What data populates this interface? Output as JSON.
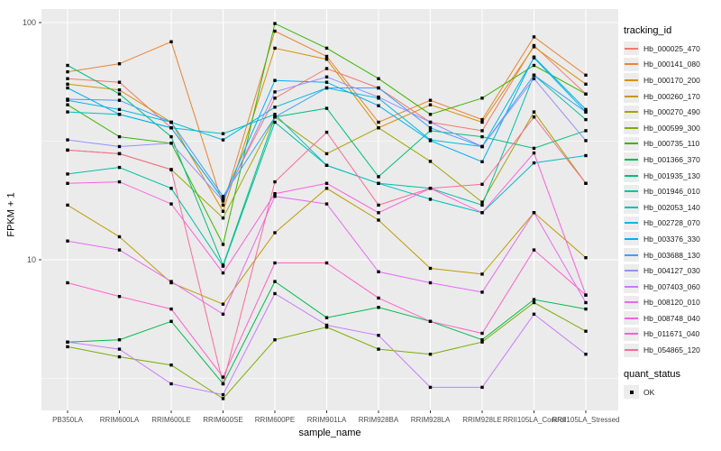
{
  "chart_data": {
    "type": "line",
    "title": "",
    "xlabel": "sample_name",
    "ylabel": "FPKM + 1",
    "y_scale": "log10",
    "y_tick_labels": [
      "100",
      "10"
    ],
    "y_tick_values": [
      100,
      10
    ],
    "y_minor_values": [
      31.62,
      3.162
    ],
    "ylim": [
      2.3,
      114
    ],
    "grid": true,
    "panel_bg": "#EBEBEB",
    "grid_color": "#FFFFFF",
    "tick_color": "#333333",
    "tick_label_color": "#4D4D4D",
    "point_shape": "square",
    "point_color": "#000000",
    "categories": [
      "PB350LA",
      "RRIM600LA",
      "RRIM600LE",
      "RRIM600SE",
      "RRIM600PE",
      "RRIM901LA",
      "RRIM928BA",
      "RRIM928LA",
      "RRIM928LE",
      "RRII105LA_Control",
      "RRII105LA_Stressed"
    ],
    "legend": {
      "title": "tracking_id",
      "position": "right"
    },
    "legend2": {
      "title": "quant_status",
      "items": [
        {
          "label": "OK",
          "shape": "square"
        }
      ]
    },
    "series": [
      {
        "name": "Hb_000025_470",
        "color": "#F8766D",
        "values": [
          58,
          56,
          36,
          18,
          48,
          64,
          53,
          38,
          35,
          80,
          50
        ]
      },
      {
        "name": "Hb_000141_080",
        "color": "#EA8331",
        "values": [
          62,
          67,
          83,
          17,
          92,
          72,
          38,
          47,
          39,
          87,
          60
        ]
      },
      {
        "name": "Hb_000170_200",
        "color": "#D89000",
        "values": [
          55,
          52,
          38,
          16,
          78,
          70,
          36,
          45,
          38,
          79,
          55
        ]
      },
      {
        "name": "Hb_000260_170",
        "color": "#C09B00",
        "values": [
          17,
          12.5,
          8,
          6.5,
          13,
          20,
          14.7,
          9.2,
          8.7,
          15.8,
          10.2
        ]
      },
      {
        "name": "Hb_000270_490",
        "color": "#A3A500",
        "values": [
          29,
          28,
          24,
          15,
          40,
          28,
          36,
          26,
          17.5,
          42,
          21
        ]
      },
      {
        "name": "Hb_000599_300",
        "color": "#7CAE00",
        "values": [
          4.3,
          3.9,
          3.6,
          2.6,
          4.6,
          5.2,
          4.2,
          4,
          4.5,
          6.6,
          5
        ]
      },
      {
        "name": "Hb_000735_110",
        "color": "#39B600",
        "values": [
          45,
          33,
          31,
          11.6,
          99,
          78,
          58,
          41,
          48,
          66,
          50
        ]
      },
      {
        "name": "Hb_001366_370",
        "color": "#00BB4E",
        "values": [
          4.5,
          4.6,
          5.5,
          3,
          8.1,
          5.7,
          6.3,
          5.5,
          4.6,
          6.8,
          6.2
        ]
      },
      {
        "name": "Hb_001935_130",
        "color": "#00BF7D",
        "values": [
          66,
          50,
          33,
          9.5,
          40,
          43.5,
          22.4,
          35,
          33,
          29.5,
          35
        ]
      },
      {
        "name": "Hb_001946_010",
        "color": "#00C1A3",
        "values": [
          23,
          24.5,
          20,
          9.4,
          38,
          25,
          21,
          20,
          17,
          60,
          39
        ]
      },
      {
        "name": "Hb_002053_140",
        "color": "#00BFC4",
        "values": [
          42,
          41,
          36,
          34,
          41,
          25,
          21,
          18,
          15.8,
          25.6,
          27.5
        ]
      },
      {
        "name": "Hb_002728_070",
        "color": "#00BAE0",
        "values": [
          47,
          43,
          38,
          32,
          44,
          53,
          48,
          32,
          30,
          71,
          42
        ]
      },
      {
        "name": "Hb_003376_330",
        "color": "#00B0F6",
        "values": [
          53,
          41,
          36,
          18,
          57,
          56,
          44.6,
          31.8,
          25.9,
          71.6,
          43
        ]
      },
      {
        "name": "Hb_003688_130",
        "color": "#35A2FF",
        "values": [
          47.5,
          47,
          38,
          18.5,
          40,
          53,
          53,
          36,
          30,
          60,
          42
        ]
      },
      {
        "name": "Hb_004127_030",
        "color": "#9590FF",
        "values": [
          32,
          30,
          31,
          17.7,
          51,
          59,
          48.5,
          38,
          30,
          58,
          31.8
        ]
      },
      {
        "name": "Hb_007403_060",
        "color": "#C77CFF",
        "values": [
          4.5,
          4.2,
          3,
          2.7,
          7.2,
          5.3,
          4.8,
          2.9,
          2.9,
          5.9,
          4
        ]
      },
      {
        "name": "Hb_008120_010",
        "color": "#E76BF3",
        "values": [
          12,
          11,
          8.1,
          5.9,
          18.5,
          17.2,
          8.9,
          8,
          7.3,
          15.8,
          6.6
        ]
      },
      {
        "name": "Hb_008748_040",
        "color": "#FA62DB",
        "values": [
          21,
          21.3,
          17.2,
          8.8,
          19,
          21,
          15.8,
          20,
          15.8,
          28.2,
          7.1
        ]
      },
      {
        "name": "Hb_011671_040",
        "color": "#FF61C9",
        "values": [
          8,
          7,
          6.2,
          3.2,
          9.7,
          9.7,
          6.9,
          5.5,
          4.9,
          11,
          7.1
        ]
      },
      {
        "name": "Hb_054865_120",
        "color": "#FF6A98",
        "values": [
          29,
          28,
          24,
          3,
          21.3,
          34.5,
          17,
          20,
          20.8,
          40,
          21
        ]
      }
    ]
  }
}
